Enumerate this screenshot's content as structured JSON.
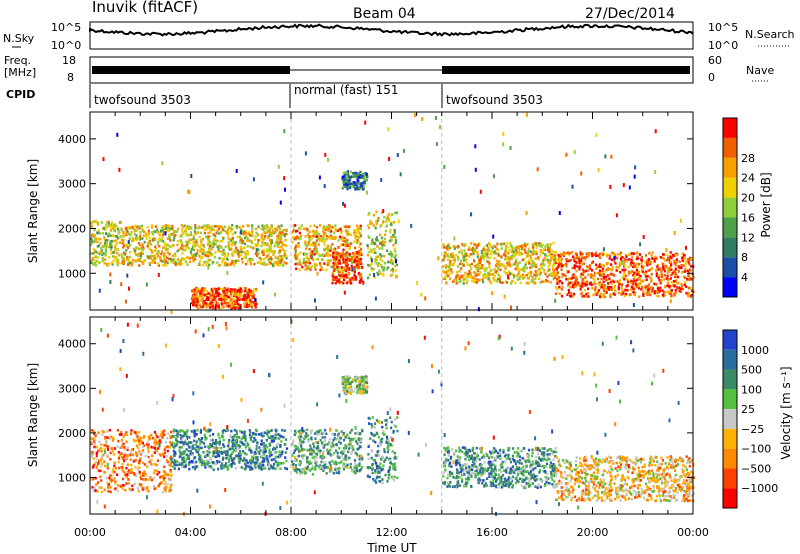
{
  "header": {
    "station": "Inuvik (fitACF)",
    "beam": "Beam 04",
    "date": "27/Dec/2014"
  },
  "noise_panel": {
    "left_label": "N.Sky",
    "right_label": "N.Search",
    "left_ticks": [
      "10^5",
      "10^0"
    ],
    "right_ticks": [
      "10^5",
      "10^0"
    ]
  },
  "freq_panel": {
    "left_label_1": "Freq.",
    "left_label_2": "[MHz]",
    "right_label": "Nave",
    "left_ticks": [
      "18",
      "8"
    ],
    "right_ticks": [
      "60",
      "0"
    ]
  },
  "cpid": {
    "label": "CPID",
    "segments": [
      {
        "name": "twofsound 3503",
        "start_hour": 0,
        "end_hour": 8
      },
      {
        "name": "normal (fast) 151",
        "start_hour": 8,
        "end_hour": 14
      },
      {
        "name": "twofsound 3503",
        "start_hour": 14,
        "end_hour": 24
      }
    ]
  },
  "colors": {
    "power_scale": [
      "#0000ff",
      "#1a4fa8",
      "#2e7d5e",
      "#4fa04a",
      "#8fcf3a",
      "#f0d000",
      "#f7a000",
      "#f06000",
      "#ff0000"
    ],
    "velocity_scale": [
      "#2244cc",
      "#2a6ea0",
      "#3a8c66",
      "#55c040",
      "#c8c8c8",
      "#ffb000",
      "#ff8a00",
      "#ff4000",
      "#ff0000"
    ]
  },
  "chart_data": [
    {
      "type": "heatmap",
      "panel": "power",
      "ylabel": "Slant Range [km]",
      "yticks": [
        1000,
        2000,
        3000,
        4000
      ],
      "ylim": [
        180,
        4600
      ],
      "xlim": [
        0,
        24
      ],
      "colorbar": {
        "label": "Power [dB]",
        "ticks": [
          "4",
          "8",
          "12",
          "16",
          "20",
          "24",
          "28"
        ]
      },
      "features": [
        {
          "t0": 0.0,
          "t1": 1.2,
          "r0": 1200,
          "r1": 2200,
          "level": 0.55
        },
        {
          "t0": 1.2,
          "t1": 7.8,
          "r0": 1200,
          "r1": 2100,
          "level": 0.62
        },
        {
          "t0": 4.0,
          "t1": 6.6,
          "r0": 250,
          "r1": 700,
          "level": 0.85
        },
        {
          "t0": 8.0,
          "t1": 10.8,
          "r0": 1100,
          "r1": 2100,
          "level": 0.7
        },
        {
          "t0": 9.6,
          "t1": 10.8,
          "r0": 800,
          "r1": 1500,
          "level": 0.9
        },
        {
          "t0": 10.0,
          "t1": 11.0,
          "r0": 2900,
          "r1": 3300,
          "level": 0.3
        },
        {
          "t0": 11.0,
          "t1": 12.2,
          "r0": 900,
          "r1": 2400,
          "level": 0.55
        },
        {
          "t0": 14.0,
          "t1": 18.5,
          "r0": 800,
          "r1": 1700,
          "level": 0.65
        },
        {
          "t0": 18.5,
          "t1": 24.0,
          "r0": 500,
          "r1": 1500,
          "level": 0.85
        }
      ]
    },
    {
      "type": "heatmap",
      "panel": "velocity",
      "ylabel": "Slant Range [km]",
      "yticks": [
        1000,
        2000,
        3000,
        4000
      ],
      "ylim": [
        180,
        4600
      ],
      "xlim": [
        0,
        24
      ],
      "xticks": [
        "00:00",
        "04:00",
        "08:00",
        "12:00",
        "16:00",
        "20:00",
        "00:00"
      ],
      "xlabel": "Time UT",
      "colorbar": {
        "label": "Velocity [m s⁻¹]",
        "ticks": [
          "1000",
          "500",
          "100",
          "25",
          "−25",
          "−100",
          "−500",
          "−1000"
        ]
      },
      "features": [
        {
          "t0": 0.0,
          "t1": 3.2,
          "r0": 700,
          "r1": 2100,
          "level": 0.72
        },
        {
          "t0": 3.2,
          "t1": 7.8,
          "r0": 1200,
          "r1": 2100,
          "level": 0.25
        },
        {
          "t0": 8.0,
          "t1": 10.8,
          "r0": 1100,
          "r1": 2100,
          "level": 0.35
        },
        {
          "t0": 10.0,
          "t1": 11.0,
          "r0": 2900,
          "r1": 3300,
          "level": 0.45
        },
        {
          "t0": 11.0,
          "t1": 12.2,
          "r0": 900,
          "r1": 2400,
          "level": 0.3
        },
        {
          "t0": 14.0,
          "t1": 18.5,
          "r0": 800,
          "r1": 1700,
          "level": 0.3
        },
        {
          "t0": 18.5,
          "t1": 24.0,
          "r0": 500,
          "r1": 1500,
          "level": 0.6
        }
      ]
    }
  ]
}
